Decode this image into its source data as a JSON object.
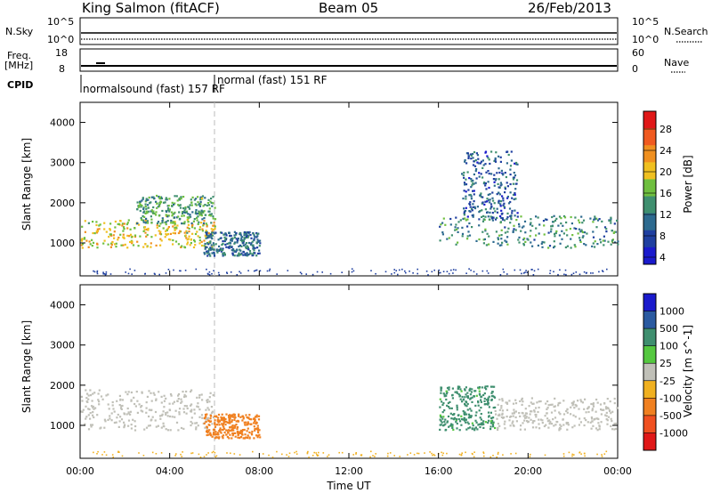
{
  "header": {
    "site": "King Salmon (fitACF)",
    "beam": "Beam 05",
    "date": "26/Feb/2013"
  },
  "panels": {
    "nsky": {
      "label": "N.Sky",
      "ticks": [
        "10^5",
        "10^0"
      ]
    },
    "nsearch": {
      "label": "N.Search",
      "ticks": [
        "10^5",
        "10^0"
      ]
    },
    "freq": {
      "label_line1": "Freq.",
      "label_line2": "[MHz]",
      "ticks": [
        "18",
        "8"
      ]
    },
    "nave": {
      "label": "Nave",
      "ticks": [
        "60",
        "0"
      ]
    },
    "cpid": {
      "label": "CPID",
      "modes": [
        "normalsound (fast) 157 RF",
        "normal (fast) 151 RF"
      ]
    }
  },
  "colors": {
    "power": [
      "#1a1acc",
      "#1f3fa0",
      "#2d6a8f",
      "#3f8f6f",
      "#6fbf3f",
      "#f0c020",
      "#f09020",
      "#f05a20",
      "#e01818"
    ],
    "velocity": [
      "#1a1acc",
      "#2a5aa0",
      "#3f8f6f",
      "#55c840",
      "#c0c0b8",
      "#f0b020",
      "#f08020",
      "#f05020",
      "#e01818"
    ]
  },
  "chart_data": [
    {
      "type": "heatmap",
      "title": "Power",
      "xlabel": "Time UT",
      "ylabel": "Slant Range [km]",
      "x_ticks": [
        "00:00",
        "04:00",
        "08:00",
        "12:00",
        "16:00",
        "20:00",
        "00:00"
      ],
      "y_ticks": [
        "1000",
        "2000",
        "3000",
        "4000"
      ],
      "xlim_hours": [
        0,
        24
      ],
      "ylim_km": [
        180,
        4500
      ],
      "colorbar": {
        "label": "Power [dB]",
        "ticks": [
          "28",
          "24",
          "20",
          "16",
          "12",
          "8",
          "4"
        ],
        "range": [
          0,
          30
        ]
      },
      "scatter_regions": [
        {
          "t0": 0.0,
          "t1": 6.0,
          "range_km": [
            900,
            1600
          ],
          "power_db": 18
        },
        {
          "t0": 2.5,
          "t1": 6.0,
          "range_km": [
            1500,
            2200
          ],
          "power_db": 12
        },
        {
          "t0": 5.5,
          "t1": 8.0,
          "range_km": [
            700,
            1300
          ],
          "power_db": 8
        },
        {
          "t0": 16.0,
          "t1": 24.0,
          "range_km": [
            900,
            1700
          ],
          "power_db": 10
        },
        {
          "t0": 17.0,
          "t1": 19.5,
          "range_km": [
            1600,
            3300
          ],
          "power_db": 6
        }
      ]
    },
    {
      "type": "heatmap",
      "title": "Velocity",
      "xlabel": "Time UT",
      "ylabel": "Slant Range [km]",
      "x_ticks": [
        "00:00",
        "04:00",
        "08:00",
        "12:00",
        "16:00",
        "20:00",
        "00:00"
      ],
      "y_ticks": [
        "1000",
        "2000",
        "3000",
        "4000"
      ],
      "xlim_hours": [
        0,
        24
      ],
      "ylim_km": [
        180,
        4500
      ],
      "colorbar": {
        "label": "Velocity [m s^-1]",
        "ticks": [
          "1000",
          "500",
          "100",
          "25",
          "-25",
          "-100",
          "-500",
          "-1000"
        ]
      },
      "scatter_regions": [
        {
          "t0": 0.0,
          "t1": 6.0,
          "range_km": [
            900,
            1900
          ],
          "velocity_ms": 0
        },
        {
          "t0": 5.5,
          "t1": 8.0,
          "range_km": [
            700,
            1300
          ],
          "velocity_ms": -200
        },
        {
          "t0": 16.0,
          "t1": 18.5,
          "range_km": [
            900,
            2000
          ],
          "velocity_ms": 150
        },
        {
          "t0": 18.5,
          "t1": 24.0,
          "range_km": [
            900,
            1700
          ],
          "velocity_ms": 0
        }
      ]
    }
  ]
}
